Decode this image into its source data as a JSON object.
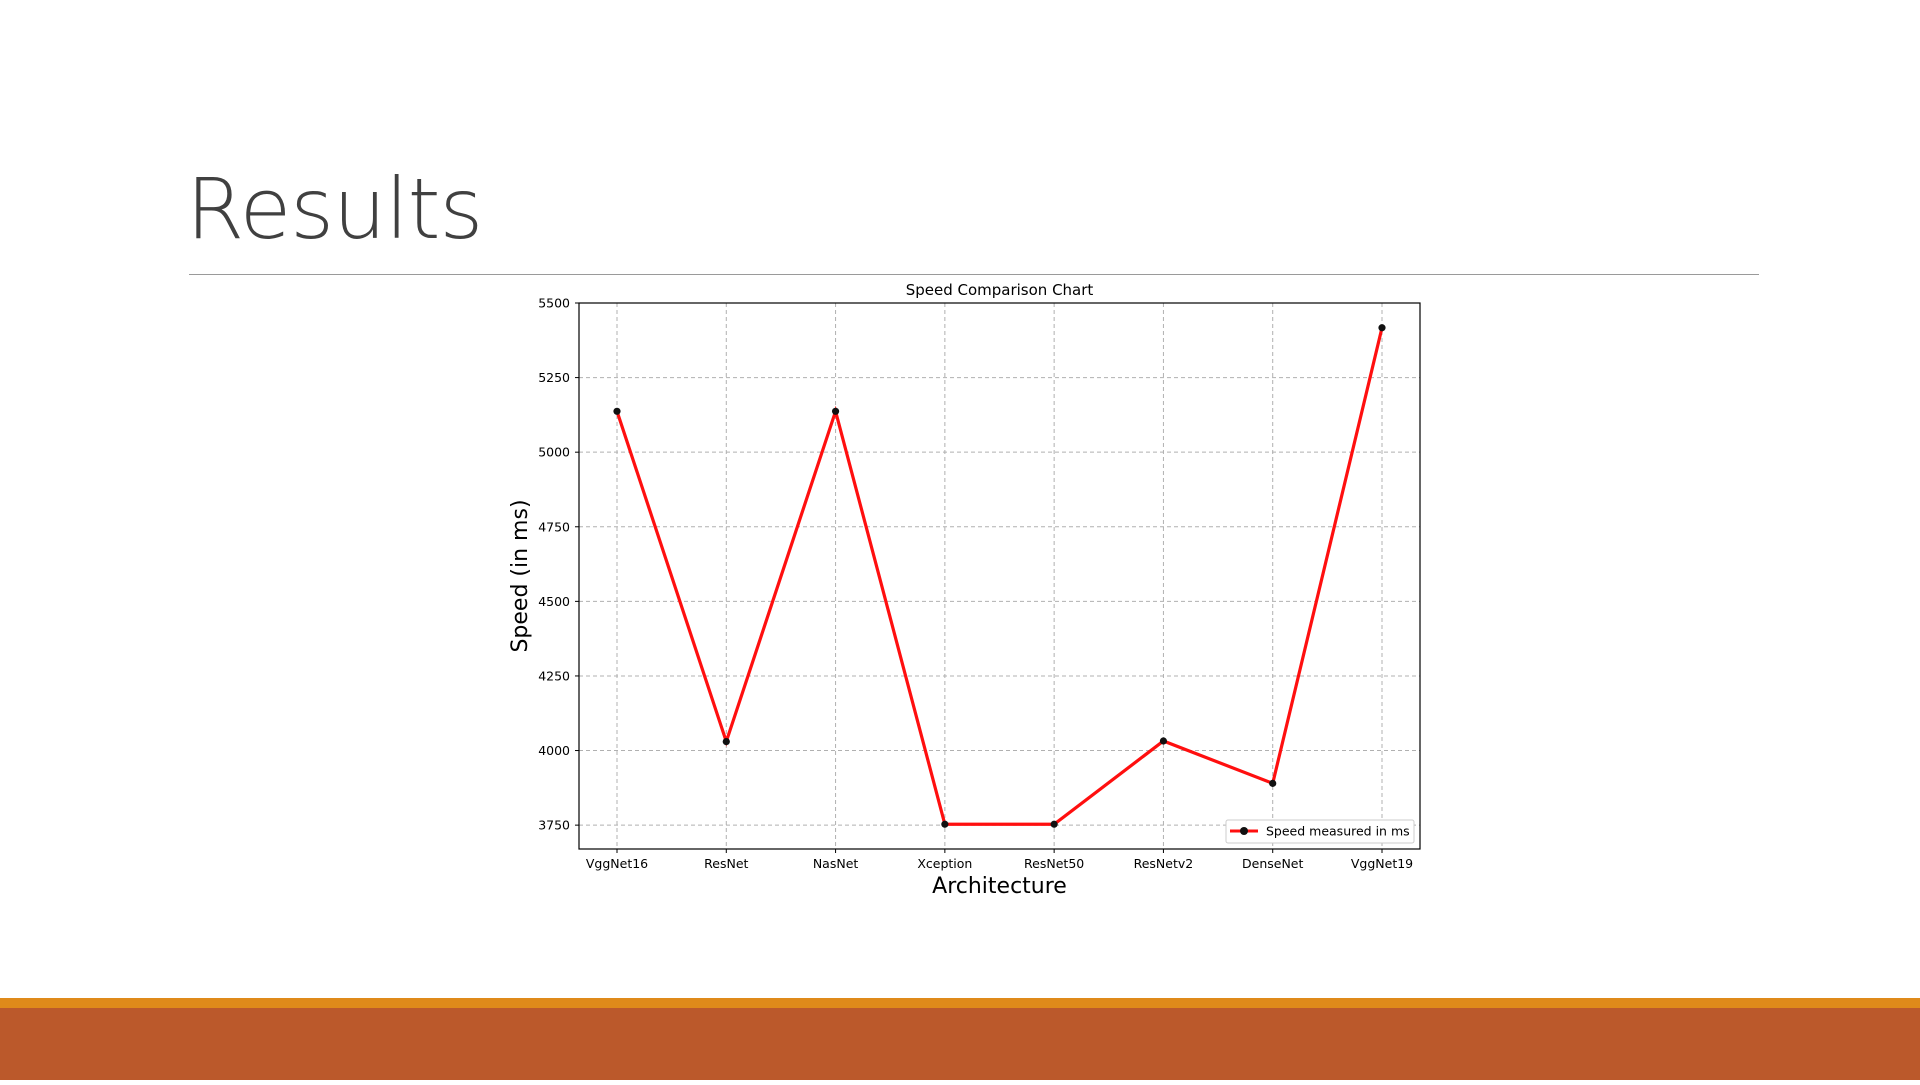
{
  "slide": {
    "title": "Results"
  },
  "colors": {
    "line": "#ff0f0f",
    "marker": "#111111",
    "grid": "#b0b0b0",
    "footer_stripe": "#df8a1a",
    "footer_band": "#bb592b"
  },
  "chart_data": {
    "type": "line",
    "title": "Speed Comparison Chart",
    "xlabel": "Architecture",
    "ylabel": "Speed (in ms)",
    "categories": [
      "VggNet16",
      "ResNet",
      "NasNet",
      "Xception",
      "ResNet50",
      "ResNetv2",
      "DenseNet",
      "VggNet19"
    ],
    "series": [
      {
        "name": "Speed measured in ms",
        "values": [
          5137,
          4030,
          5137,
          3753,
          3753,
          4032,
          3890,
          5417
        ]
      }
    ],
    "yticks": [
      3750,
      4000,
      4250,
      4500,
      4750,
      5000,
      5250,
      5500
    ],
    "ylim": [
      3670,
      5500
    ],
    "grid": true,
    "legend": "lower-right"
  }
}
